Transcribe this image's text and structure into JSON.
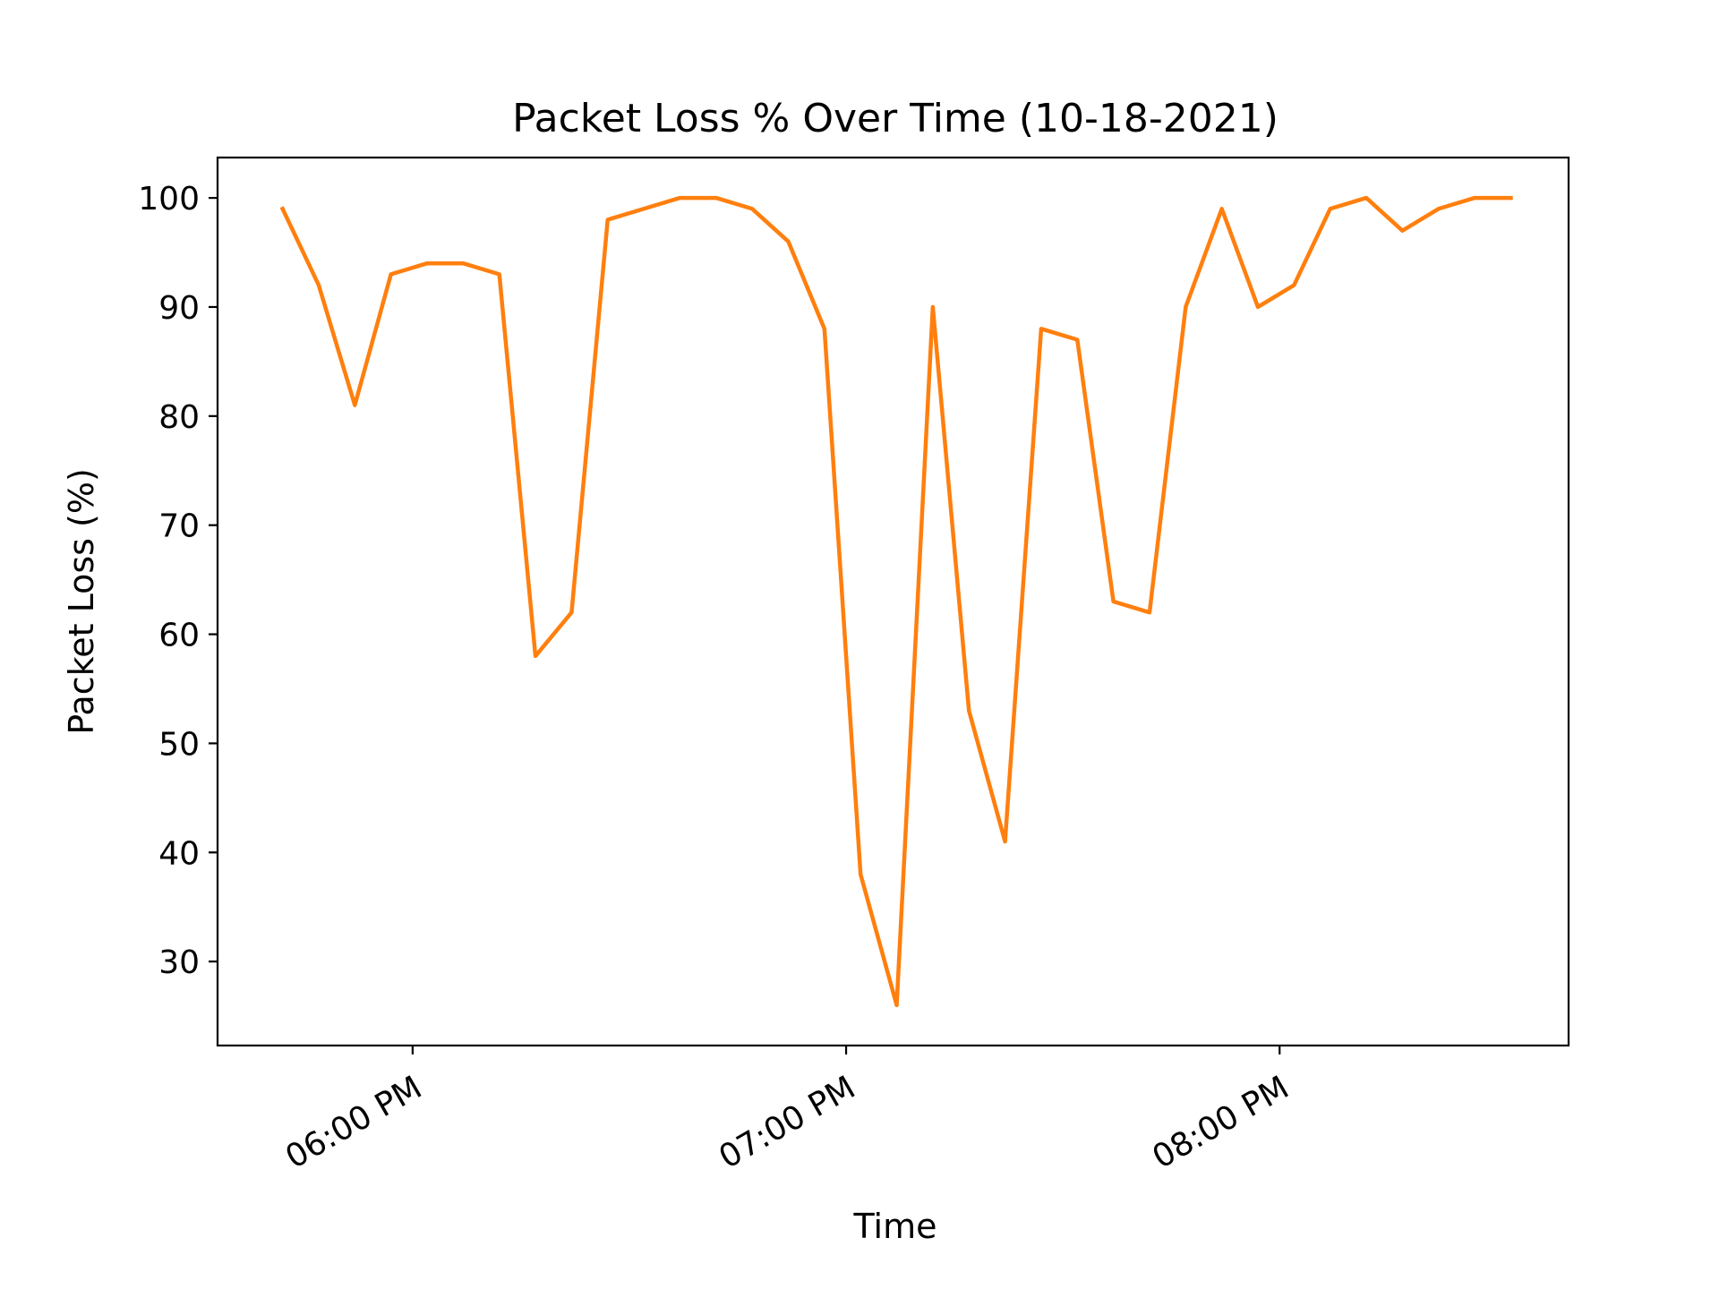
{
  "chart_data": {
    "type": "line",
    "title": "Packet Loss % Over Time (10-18-2021)",
    "xlabel": "Time",
    "ylabel": "Packet Loss (%)",
    "x_ticks": [
      "06:00 PM",
      "07:00 PM",
      "08:00 PM"
    ],
    "y_ticks": [
      30,
      40,
      50,
      60,
      70,
      80,
      90,
      100
    ],
    "ylim": [
      22.3,
      103.7
    ],
    "xlim": [
      "05:33 PM",
      "08:40 PM"
    ],
    "grid": false,
    "legend": "none",
    "series": [
      {
        "color": "#ff7f0e",
        "x": [
          "05:42 PM",
          "05:47 PM",
          "05:52 PM",
          "05:57 PM",
          "06:02 PM",
          "06:07 PM",
          "06:12 PM",
          "06:17 PM",
          "06:22 PM",
          "06:27 PM",
          "06:32 PM",
          "06:37 PM",
          "06:42 PM",
          "06:47 PM",
          "06:52 PM",
          "06:57 PM",
          "07:02 PM",
          "07:07 PM",
          "07:12 PM",
          "07:17 PM",
          "07:22 PM",
          "07:27 PM",
          "07:32 PM",
          "07:37 PM",
          "07:42 PM",
          "07:47 PM",
          "07:52 PM",
          "07:57 PM",
          "08:02 PM",
          "08:07 PM",
          "08:12 PM",
          "08:17 PM",
          "08:22 PM",
          "08:27 PM",
          "08:32 PM"
        ],
        "values": [
          99,
          92,
          81,
          93,
          94,
          94,
          93,
          58,
          62,
          98,
          99,
          100,
          100,
          99,
          96,
          88,
          38,
          26,
          90,
          53,
          41,
          88,
          87,
          63,
          62,
          90,
          99,
          90,
          92,
          99,
          100,
          97,
          99,
          100,
          100
        ]
      }
    ]
  }
}
